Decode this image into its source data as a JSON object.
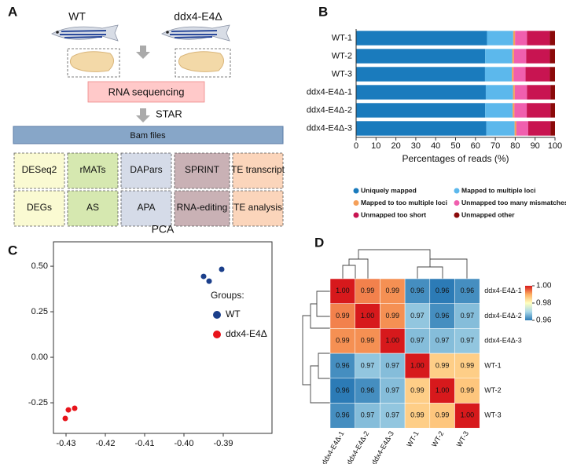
{
  "diagram": {
    "panel_label": "A",
    "groups": [
      "WT",
      "ddx4-E4Δ"
    ],
    "sequencing": "RNA sequencing",
    "aligner": "STAR",
    "bam": "Bam files",
    "tools": [
      "DESeq2",
      "rMATs",
      "DAPars",
      "SPRINT",
      "TE transcript"
    ],
    "outputs": [
      "DEGs",
      "AS",
      "APA",
      "RNA-editing",
      "TE analysis"
    ]
  },
  "chart_data": [
    {
      "type": "stacked_barh",
      "panel_label": "B",
      "xlabel": "Percentages of reads (%)",
      "categories": [
        "WT-1",
        "WT-2",
        "WT-3",
        "ddx4-E4Δ-1",
        "ddx4-E4Δ-2",
        "ddx4-E4Δ-3"
      ],
      "series": [
        {
          "name": "Uniquely mapped",
          "color": "#1a7bbd",
          "values": [
            65.8,
            64.9,
            64.8,
            65.2,
            64.9,
            65.5
          ]
        },
        {
          "name": "Mapped to multiple loci",
          "color": "#5cb8ec",
          "values": [
            13.2,
            13.6,
            13.5,
            13.7,
            13.8,
            14.2
          ]
        },
        {
          "name": "Mapped to too multiple loci",
          "color": "#f5a05a",
          "values": [
            0.9,
            0.9,
            0.9,
            0.9,
            0.9,
            0.9
          ]
        },
        {
          "name": "Unmapped too many mismatches",
          "color": "#f05fae",
          "values": [
            6.0,
            6.1,
            6.0,
            6.1,
            6.2,
            5.9
          ]
        },
        {
          "name": "Unmapped too short",
          "color": "#c81451",
          "values": [
            11.5,
            11.9,
            12.2,
            11.8,
            11.9,
            11.2
          ]
        },
        {
          "name": "Unmapped other",
          "color": "#8b0a0a",
          "values": [
            2.6,
            2.6,
            2.6,
            2.3,
            2.3,
            2.3
          ]
        }
      ],
      "xlim": [
        0,
        100
      ],
      "xticks": [
        0,
        10,
        20,
        30,
        40,
        50,
        60,
        70,
        80,
        90,
        100
      ]
    },
    {
      "type": "scatter",
      "panel_label": "C",
      "title": "PCA",
      "legend_title": "Groups:",
      "series": [
        {
          "name": "WT",
          "color": "#1b3f8b",
          "x": [
            -0.395,
            -0.3936,
            -0.3904
          ],
          "y": [
            0.444,
            0.418,
            0.483
          ]
        },
        {
          "name": "ddx4-E4Δ",
          "color": "#e8141b",
          "x": [
            -0.4302,
            -0.4294,
            -0.4278
          ],
          "y": [
            -0.336,
            -0.289,
            -0.28
          ]
        }
      ],
      "xlim": [
        -0.4332,
        -0.3776
      ],
      "xticks": [
        -0.43,
        -0.42,
        -0.41,
        {
          "value": -0.4,
          "label": "-0.40"
        },
        -0.39
      ],
      "ylim": [
        -0.418,
        0.634
      ],
      "yticks": [
        {
          "value": 0.5,
          "label": "0.50"
        },
        0.25,
        {
          "value": 0,
          "label": "0.00"
        },
        -0.25
      ]
    },
    {
      "type": "heatmap",
      "panel_label": "D",
      "rows": [
        "ddx4-E4Δ-1",
        "ddx4-E4Δ-2",
        "ddx4-E4Δ-3",
        "WT-1",
        "WT-2",
        "WT-3"
      ],
      "columns": [
        "ddx4-E4Δ-1",
        "ddx4-E4Δ-2",
        "ddx4-E4Δ-3",
        "WT-1",
        "WT-2",
        "WT-3"
      ],
      "values": [
        [
          1,
          0.993,
          0.992,
          0.962,
          0.96,
          0.962
        ],
        [
          0.993,
          1,
          0.992,
          0.968,
          0.962,
          0.967
        ],
        [
          0.992,
          0.992,
          1,
          0.967,
          0.967,
          0.968
        ],
        [
          0.962,
          0.968,
          0.967,
          1,
          0.986,
          0.986
        ],
        [
          0.96,
          0.962,
          0.967,
          0.986,
          1,
          0.987
        ],
        [
          0.962,
          0.967,
          0.968,
          0.986,
          0.987,
          1
        ]
      ],
      "value_labels": [
        [
          "1.00",
          "0.99",
          "0.99",
          "0.96",
          "0.96",
          "0.96"
        ],
        [
          "0.99",
          "1.00",
          "0.99",
          "0.97",
          "0.96",
          "0.97"
        ],
        [
          "0.99",
          "0.99",
          "1.00",
          "0.97",
          "0.97",
          "0.97"
        ],
        [
          "0.96",
          "0.97",
          "0.97",
          "1.00",
          "0.99",
          "0.99"
        ],
        [
          "0.96",
          "0.96",
          "0.97",
          "0.99",
          "1.00",
          "0.99"
        ],
        [
          "0.96",
          "0.97",
          "0.97",
          "0.99",
          "0.99",
          "1.00"
        ]
      ],
      "zlim": [
        0.96,
        1
      ],
      "zticks": [
        {
          "value": 1,
          "label": "1.00"
        },
        0.98,
        0.96
      ],
      "colorscale": [
        "#2c7bb6",
        "#abd9e9",
        "#ffffbf",
        "#fdae61",
        "#d7191c"
      ]
    }
  ]
}
